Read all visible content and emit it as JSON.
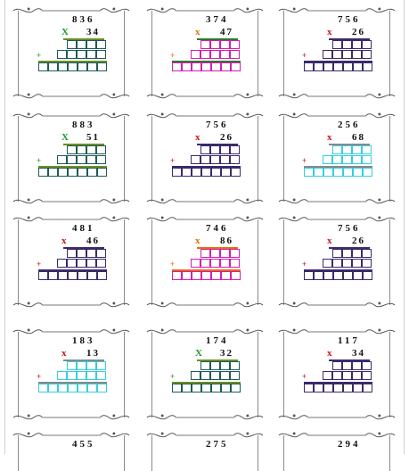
{
  "worksheet": {
    "problems": [
      {
        "top": "836",
        "bottom": "34",
        "sign": "X",
        "color": "#1e5a5a",
        "signColor": "#1a9a2a",
        "barColor": "#6b8e23"
      },
      {
        "top": "374",
        "bottom": "47",
        "sign": "x",
        "color": "#d81bb8",
        "signColor": "#e07000",
        "barColor": "#2a7a2a"
      },
      {
        "top": "756",
        "bottom": "26",
        "sign": "x",
        "color": "#3b2a6b",
        "signColor": "#cc1111",
        "barColor": "#3b2a6b"
      },
      {
        "top": "883",
        "bottom": "51",
        "sign": "X",
        "color": "#1e5a5a",
        "signColor": "#1a9a2a",
        "barColor": "#6b8e23"
      },
      {
        "top": "756",
        "bottom": "26",
        "sign": "x",
        "color": "#3b2a6b",
        "signColor": "#cc1111",
        "barColor": "#3b2a6b"
      },
      {
        "top": "256",
        "bottom": "68",
        "sign": "x",
        "color": "#33cfe0",
        "signColor": "#cc1111",
        "barColor": "#888888"
      },
      {
        "top": "481",
        "bottom": "46",
        "sign": "x",
        "color": "#3b2a6b",
        "signColor": "#cc1111",
        "barColor": "#3b2a6b"
      },
      {
        "top": "746",
        "bottom": "86",
        "sign": "x",
        "color": "#d81bb8",
        "signColor": "#e07000",
        "barColor": "#e07000"
      },
      {
        "top": "756",
        "bottom": "26",
        "sign": "x",
        "color": "#3b2a6b",
        "signColor": "#cc1111",
        "barColor": "#3b2a6b"
      },
      {
        "top": "183",
        "bottom": "13",
        "sign": "x",
        "color": "#33cfe0",
        "signColor": "#cc1111",
        "barColor": "#888888"
      },
      {
        "top": "174",
        "bottom": "32",
        "sign": "X",
        "color": "#1e5a5a",
        "signColor": "#1a9a2a",
        "barColor": "#6b8e23"
      },
      {
        "top": "117",
        "bottom": "34",
        "sign": "x",
        "color": "#3b2a6b",
        "signColor": "#cc1111",
        "barColor": "#3b2a6b"
      },
      {
        "top": "455",
        "bottom": "",
        "sign": "",
        "color": "#3b2a6b",
        "signColor": "#cc1111",
        "barColor": "#3b2a6b"
      },
      {
        "top": "275",
        "bottom": "",
        "sign": "",
        "color": "#3b2a6b",
        "signColor": "#cc1111",
        "barColor": "#3b2a6b"
      },
      {
        "top": "294",
        "bottom": "",
        "sign": "",
        "color": "#3b2a6b",
        "signColor": "#cc1111",
        "barColor": "#3b2a6b"
      }
    ],
    "plus_label": "+"
  }
}
